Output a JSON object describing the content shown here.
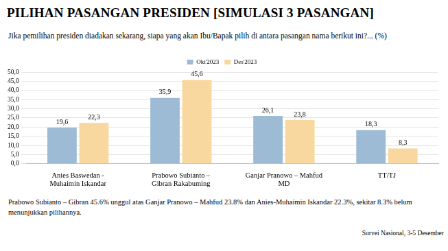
{
  "chart_data": {
    "type": "bar",
    "title": "PILIHAN PASANGAN PRESIDEN [SIMULASI 3 PASANGAN]",
    "subtitle": "Jika pemilihan presiden diadakan sekarang, siapa yang akan Ibu/Bapak pilih di antara pasangan nama berikut ini?... (%)",
    "caption": "Prabowo Subianto – Gibran 45.6% unggul atas Ganjar Pranowo – Mahfud 23.8% dan Anies-Muhaimin Iskandar 22.3%, sekitar 8.3% belum menunjukkan pilihannya.",
    "footer": "Survei Nasional, 3-5 Desember",
    "categories": [
      "Anies Baswedan - Muhaimin Iskandar",
      "Prabowo Subianto – Gibran Rakabuming",
      "Ganjar Pranowo – Mahfud MD",
      "TT/TJ"
    ],
    "series": [
      {
        "name": "Okt'2023",
        "color": "#9dbbd5",
        "values": [
          19.6,
          35.9,
          26.1,
          18.3
        ],
        "value_labels": [
          "19,6",
          "35,9",
          "26,1",
          "18,3"
        ]
      },
      {
        "name": "Des'2023",
        "color": "#f8d89e",
        "values": [
          22.3,
          45.6,
          23.8,
          8.3
        ],
        "value_labels": [
          "22,3",
          "45,6",
          "23,8",
          "8,3"
        ]
      }
    ],
    "ylim": [
      0,
      50
    ],
    "yticks": [
      {
        "value": 0,
        "label": "0,0"
      },
      {
        "value": 5,
        "label": "5,0"
      },
      {
        "value": 10,
        "label": "10,0"
      },
      {
        "value": 15,
        "label": "15,0"
      },
      {
        "value": 20,
        "label": "20,0"
      },
      {
        "value": 25,
        "label": "25,0"
      },
      {
        "value": 30,
        "label": "30,0"
      },
      {
        "value": 35,
        "label": "35,0"
      },
      {
        "value": 40,
        "label": "40,0"
      },
      {
        "value": 45,
        "label": "45,0"
      },
      {
        "value": 50,
        "label": "50,0"
      }
    ],
    "grid": true,
    "legend": "top",
    "data_labels": true
  }
}
